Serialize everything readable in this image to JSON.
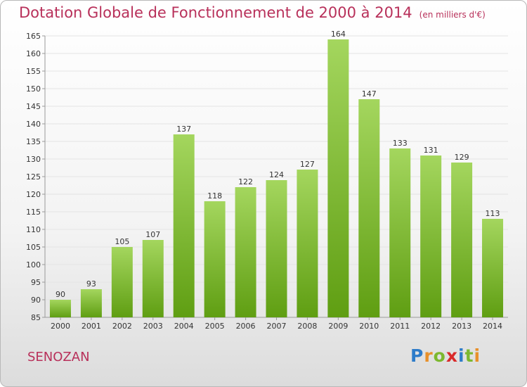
{
  "header": {
    "title": "Dotation Globale de Fonctionnement de 2000 à 2014",
    "subtitle": "(en milliers d'€)"
  },
  "footer": {
    "commune": "SENOZAN",
    "logo": "Proxiti"
  },
  "chart_data": {
    "type": "bar",
    "title": "Dotation Globale de Fonctionnement de 2000 à 2014",
    "subtitle": "(en milliers d'€)",
    "categories": [
      "2000",
      "2001",
      "2002",
      "2003",
      "2004",
      "2005",
      "2006",
      "2007",
      "2008",
      "2009",
      "2010",
      "2011",
      "2012",
      "2013",
      "2014"
    ],
    "values": [
      90,
      93,
      105,
      107,
      137,
      118,
      122,
      124,
      127,
      164,
      147,
      133,
      131,
      129,
      113
    ],
    "data_labels": [
      "90",
      "93",
      "105",
      "107",
      "137",
      "118",
      "122",
      "124",
      "127",
      "164",
      "147",
      "133",
      "131",
      "129",
      "113"
    ],
    "ylim": [
      85,
      165
    ],
    "yticks": [
      85,
      90,
      95,
      100,
      105,
      110,
      115,
      120,
      125,
      130,
      135,
      140,
      145,
      150,
      155,
      160,
      165
    ],
    "grid": true,
    "bar_color_top": "#a4d65e",
    "bar_color_bottom": "#5f9e12"
  }
}
